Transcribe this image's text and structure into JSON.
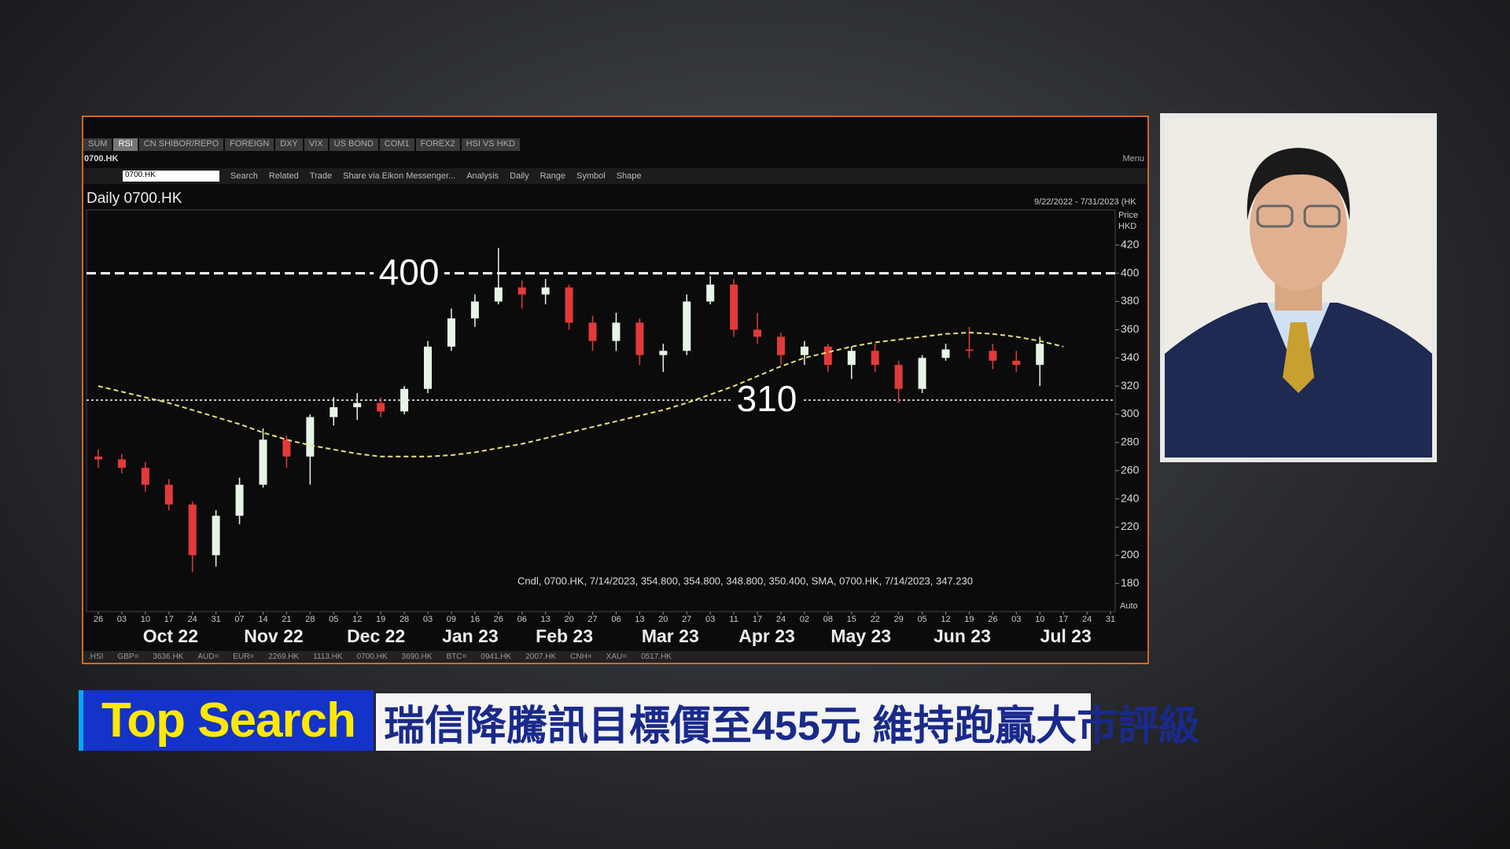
{
  "tabs": [
    "SUM",
    "RSI",
    "CN SHIBOR/REPO",
    "FOREIGN",
    "DXY",
    "VIX",
    "US BOND",
    "COM1",
    "FOREX2",
    "HSI VS HKD"
  ],
  "symbol": "0700.HK",
  "search_value": "0700.HK",
  "toolbar": [
    "Search",
    "Related",
    "Trade",
    "Share via Eikon Messenger...",
    "Analysis",
    "Daily",
    "Range",
    "Symbol",
    "Shape"
  ],
  "menu": "Menu",
  "ticker_bar": [
    ".HSI",
    "GBP=",
    "3636.HK",
    "AUD=",
    "EUR=",
    "2269.HK",
    "1113.HK",
    "0700.HK",
    "3690.HK",
    "BTC=",
    "0941.HK",
    "2007.HK",
    "CNH=",
    "XAU=",
    "0517.HK"
  ],
  "caption": {
    "tag": "Top Search",
    "headline": "瑞信降騰訊目標價至455元 維持跑贏大市評級"
  },
  "chart_data": {
    "type": "candlestick",
    "title": "Daily 0700.HK",
    "date_range": "9/22/2022 - 7/31/2023 (HK",
    "y_label": "Price",
    "y_unit": "HKD",
    "info": "Cndl, 0700.HK, 7/14/2023, 354.800, 354.800, 348.800, 350.400, SMA, 0700.HK, 7/14/2023, 347.230",
    "scale_mode": "Auto",
    "x": [
      0,
      1,
      2,
      3,
      4,
      5,
      6,
      7,
      8,
      9,
      10,
      11,
      12,
      13,
      14,
      15,
      16,
      17,
      18,
      19,
      20,
      21,
      22,
      23,
      24,
      25,
      26,
      27,
      28,
      29,
      30,
      31,
      32,
      33,
      34,
      35,
      36,
      37,
      38,
      39,
      40
    ],
    "open": [
      270,
      268,
      262,
      250,
      236,
      200,
      228,
      250,
      282,
      270,
      298,
      305,
      308,
      302,
      318,
      348,
      368,
      380,
      390,
      385,
      390,
      365,
      352,
      365,
      342,
      345,
      380,
      392,
      360,
      355,
      342,
      348,
      335,
      345,
      335,
      318,
      340,
      346,
      345,
      338,
      335
    ],
    "high": [
      275,
      272,
      266,
      254,
      238,
      232,
      255,
      290,
      285,
      300,
      312,
      315,
      312,
      320,
      352,
      375,
      385,
      418,
      395,
      396,
      392,
      370,
      372,
      368,
      350,
      385,
      398,
      396,
      372,
      358,
      352,
      350,
      348,
      350,
      338,
      342,
      350,
      362,
      350,
      345,
      355
    ],
    "low": [
      262,
      258,
      245,
      232,
      188,
      192,
      222,
      248,
      262,
      250,
      292,
      296,
      298,
      300,
      315,
      345,
      362,
      378,
      375,
      378,
      360,
      345,
      345,
      335,
      330,
      342,
      378,
      355,
      350,
      335,
      335,
      330,
      325,
      330,
      308,
      315,
      338,
      340,
      332,
      330,
      320
    ],
    "close": [
      268,
      262,
      250,
      236,
      200,
      228,
      250,
      282,
      270,
      298,
      305,
      308,
      302,
      318,
      348,
      368,
      380,
      390,
      385,
      390,
      365,
      352,
      365,
      342,
      345,
      380,
      392,
      360,
      355,
      342,
      348,
      335,
      345,
      335,
      318,
      340,
      346,
      345,
      338,
      335,
      350
    ],
    "up_color": "#e6f5e6",
    "down_color": "#e23a3a",
    "series": [
      {
        "name": "SMA",
        "color": "#e8e27a",
        "x": [
          0,
          1,
          2,
          3,
          4,
          5,
          6,
          7,
          8,
          9,
          10,
          11,
          12,
          13,
          14,
          15,
          16,
          17,
          18,
          19,
          20,
          21,
          22,
          23,
          24,
          25,
          26,
          27,
          28,
          29,
          30,
          31,
          32,
          33,
          34,
          35,
          36,
          37,
          38,
          39,
          40,
          41
        ],
        "values": [
          320,
          316,
          312,
          308,
          303,
          298,
          293,
          287,
          282,
          278,
          275,
          272,
          270,
          270,
          270,
          271,
          273,
          276,
          279,
          283,
          287,
          291,
          295,
          299,
          303,
          308,
          314,
          320,
          327,
          334,
          340,
          344,
          348,
          351,
          353,
          355,
          357,
          358,
          357,
          355,
          352,
          348
        ]
      }
    ],
    "hlines": [
      400,
      310
    ],
    "hline_color": "#ffffff",
    "xlim": [
      -0.5,
      43.2
    ],
    "ylim": [
      160,
      445
    ],
    "yticks": [
      180,
      200,
      220,
      240,
      260,
      280,
      300,
      320,
      340,
      360,
      380,
      400,
      420
    ],
    "xticks": [
      {
        "value": 0,
        "label": "26"
      },
      {
        "value": 1,
        "label": "03"
      },
      {
        "value": 2,
        "label": "10"
      },
      {
        "value": 3,
        "label": "17"
      },
      {
        "value": 4,
        "label": "24"
      },
      {
        "value": 5,
        "label": "31"
      },
      {
        "value": 6,
        "label": "07"
      },
      {
        "value": 7,
        "label": "14"
      },
      {
        "value": 8,
        "label": "21"
      },
      {
        "value": 9,
        "label": "28"
      },
      {
        "value": 10,
        "label": "05"
      },
      {
        "value": 11,
        "label": "12"
      },
      {
        "value": 12,
        "label": "19"
      },
      {
        "value": 13,
        "label": "28"
      },
      {
        "value": 14,
        "label": "03"
      },
      {
        "value": 15,
        "label": "09"
      },
      {
        "value": 16,
        "label": "16"
      },
      {
        "value": 17,
        "label": "26"
      },
      {
        "value": 18,
        "label": "06"
      },
      {
        "value": 19,
        "label": "13"
      },
      {
        "value": 20,
        "label": "20"
      },
      {
        "value": 21,
        "label": "27"
      },
      {
        "value": 22,
        "label": "06"
      },
      {
        "value": 23,
        "label": "13"
      },
      {
        "value": 24,
        "label": "20"
      },
      {
        "value": 25,
        "label": "27"
      },
      {
        "value": 26,
        "label": "03"
      },
      {
        "value": 27,
        "label": "11"
      },
      {
        "value": 28,
        "label": "17"
      },
      {
        "value": 29,
        "label": "24"
      },
      {
        "value": 30,
        "label": "02"
      },
      {
        "value": 31,
        "label": "08"
      },
      {
        "value": 32,
        "label": "15"
      },
      {
        "value": 33,
        "label": "22"
      },
      {
        "value": 34,
        "label": "29"
      },
      {
        "value": 35,
        "label": "05"
      },
      {
        "value": 36,
        "label": "12"
      },
      {
        "value": 37,
        "label": "19"
      },
      {
        "value": 38,
        "label": "26"
      },
      {
        "value": 39,
        "label": "03"
      },
      {
        "value": 40,
        "label": "10"
      },
      {
        "value": 41,
        "label": "17"
      },
      {
        "value": 42,
        "label": "24"
      },
      {
        "value": 43,
        "label": "31"
      }
    ],
    "month_ticks": [
      {
        "value": 3.07,
        "label": "Oct 22"
      },
      {
        "value": 7.45,
        "label": "Nov 22"
      },
      {
        "value": 11.8,
        "label": "Dec 22"
      },
      {
        "value": 15.8,
        "label": "Jan 23"
      },
      {
        "value": 19.8,
        "label": "Feb 23"
      },
      {
        "value": 24.3,
        "label": "Mar 23"
      },
      {
        "value": 28.4,
        "label": "Apr 23"
      },
      {
        "value": 32.4,
        "label": "May 23"
      },
      {
        "value": 36.7,
        "label": "Jun 23"
      },
      {
        "value": 41.1,
        "label": "Jul 23"
      }
    ],
    "grid": false
  }
}
